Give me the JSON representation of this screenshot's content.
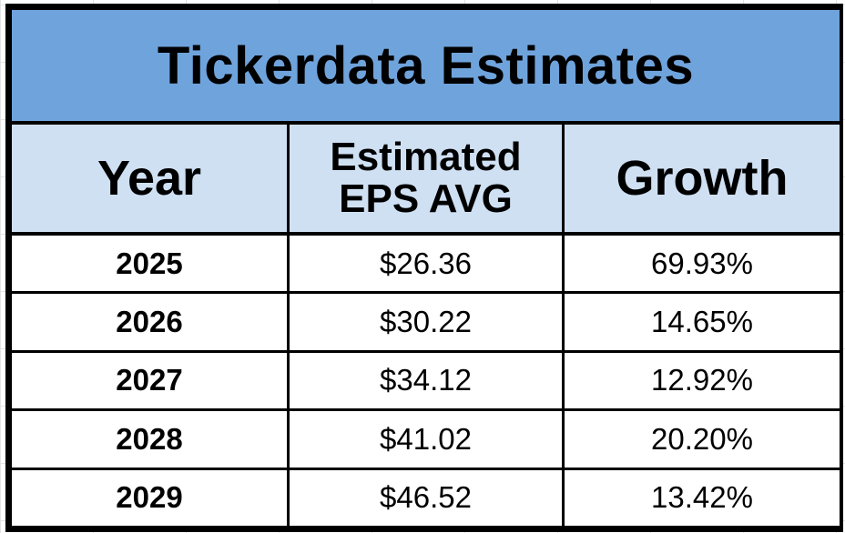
{
  "chart_data": {
    "type": "table",
    "title": "Tickerdata Estimates",
    "columns": [
      {
        "lines": [
          "Year"
        ]
      },
      {
        "lines": [
          "Estimated",
          "EPS AVG"
        ]
      },
      {
        "lines": [
          "Growth"
        ]
      }
    ],
    "rows": [
      {
        "year": "2025",
        "eps": "$26.36",
        "growth": "69.93%"
      },
      {
        "year": "2026",
        "eps": "$30.22",
        "growth": "14.65%"
      },
      {
        "year": "2027",
        "eps": "$34.12",
        "growth": "12.92%"
      },
      {
        "year": "2028",
        "eps": "$41.02",
        "growth": "20.20%"
      },
      {
        "year": "2029",
        "eps": "$46.52",
        "growth": "13.42%"
      }
    ]
  },
  "colors": {
    "title_background": "#6fa3dc",
    "header_background": "#cfe0f3",
    "border": "#000000"
  }
}
